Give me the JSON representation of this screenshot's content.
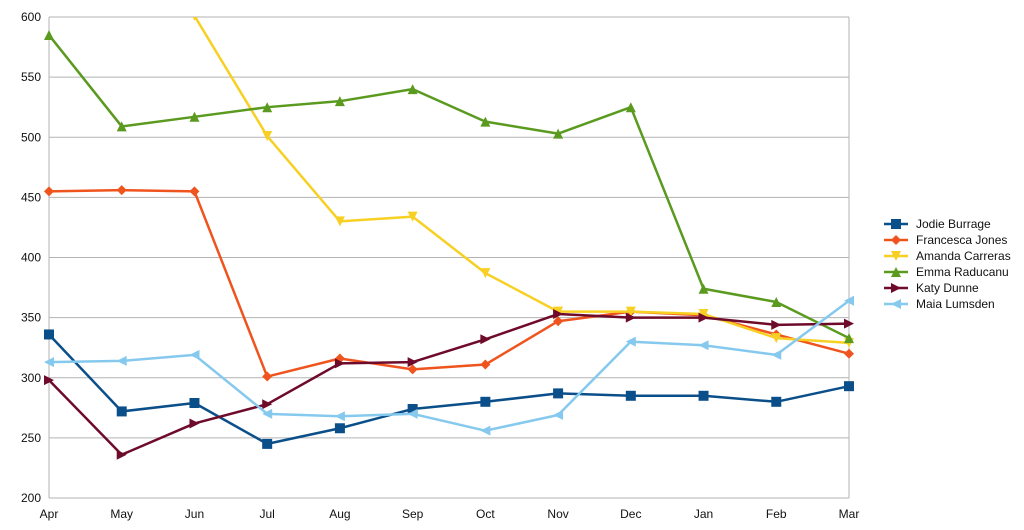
{
  "chart_data": {
    "type": "line",
    "title": "",
    "xlabel": "",
    "ylabel": "",
    "categories": [
      "Apr",
      "May",
      "Jun",
      "Jul",
      "Aug",
      "Sep",
      "Oct",
      "Nov",
      "Dec",
      "Jan",
      "Feb",
      "Mar"
    ],
    "ylim": [
      200,
      600
    ],
    "yticks": [
      200,
      250,
      300,
      350,
      400,
      450,
      500,
      550,
      600
    ],
    "grid": true,
    "legend": "right",
    "series": [
      {
        "name": "Jodie Burrage",
        "color": "#0b4f8a",
        "marker": "square",
        "values": [
          336,
          272,
          279,
          245,
          258,
          274,
          280,
          287,
          285,
          285,
          280,
          293
        ]
      },
      {
        "name": "Francesca Jones",
        "color": "#f0541e",
        "marker": "diamond",
        "values": [
          455,
          456,
          455,
          301,
          316,
          307,
          311,
          347,
          355,
          352,
          336,
          320
        ]
      },
      {
        "name": "Amanda Carreras",
        "color": "#f7d023",
        "marker": "triangle-down",
        "values": [
          null,
          null,
          601,
          501,
          430,
          434,
          387,
          355,
          355,
          353,
          333,
          329
        ]
      },
      {
        "name": "Emma Raducanu",
        "color": "#5a9a1f",
        "marker": "triangle-up",
        "values": [
          585,
          509,
          517,
          525,
          530,
          540,
          513,
          503,
          525,
          374,
          363,
          333
        ]
      },
      {
        "name": "Katy Dunne",
        "color": "#6e0a2a",
        "marker": "triangle-right",
        "values": [
          298,
          236,
          262,
          278,
          312,
          313,
          332,
          353,
          350,
          350,
          344,
          345
        ]
      },
      {
        "name": "Maia Lumsden",
        "color": "#86c9ee",
        "marker": "triangle-left",
        "values": [
          313,
          314,
          319,
          270,
          268,
          270,
          256,
          269,
          330,
          327,
          319,
          364
        ]
      }
    ]
  }
}
